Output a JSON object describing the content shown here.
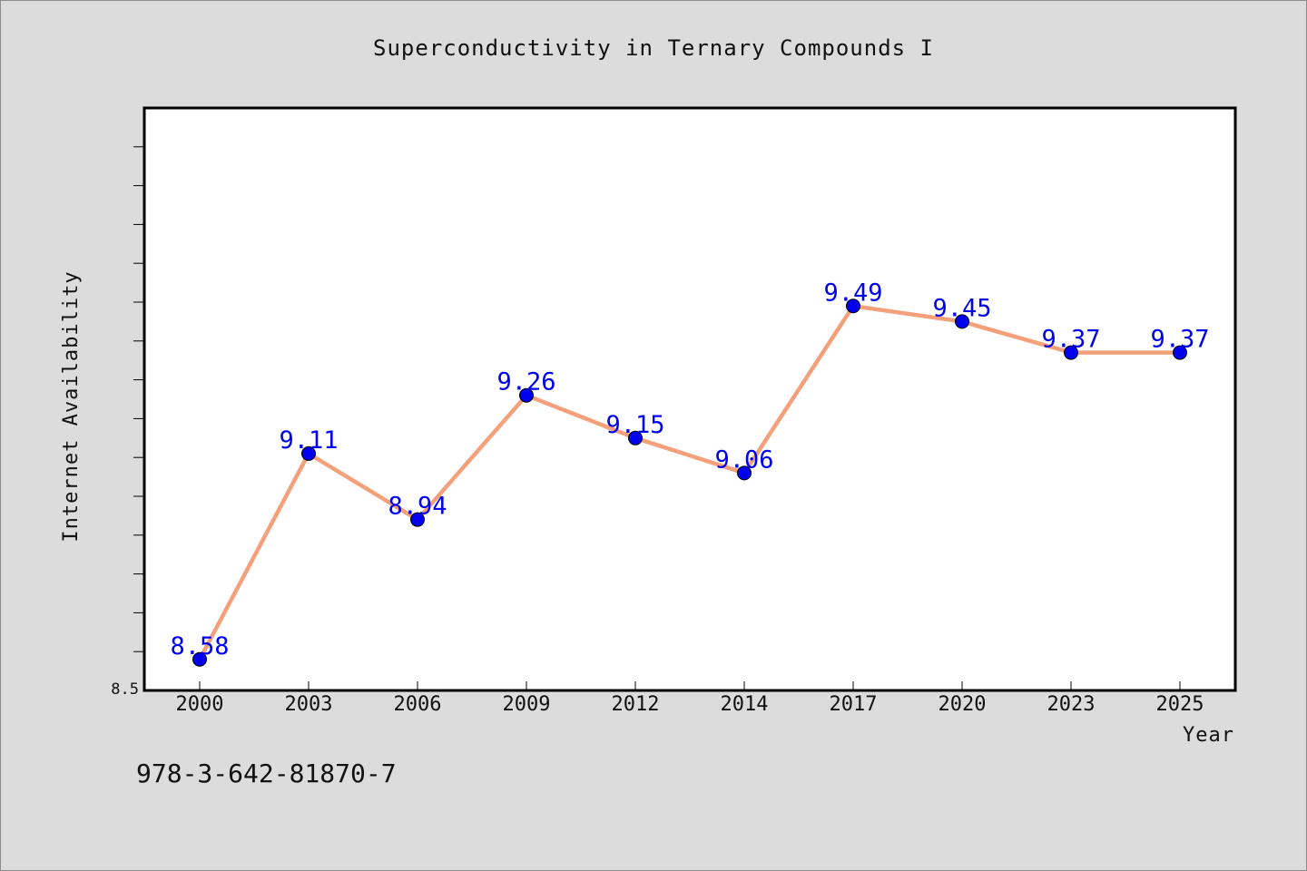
{
  "chart_data": {
    "type": "line",
    "title": "Superconductivity in Ternary Compounds I",
    "xlabel": "Year",
    "ylabel": "Internet Availability",
    "categories": [
      "2000",
      "2003",
      "2006",
      "2009",
      "2012",
      "2014",
      "2017",
      "2020",
      "2023",
      "2025"
    ],
    "series": [
      {
        "values": [
          8.58,
          9.11,
          8.94,
          9.26,
          9.15,
          9.06,
          9.49,
          9.45,
          9.37,
          9.37
        ],
        "line_color": "#f4a07a",
        "marker_color": "#0000ee"
      }
    ],
    "data_labels": [
      "8.58",
      "9.11",
      "8.94",
      "9.26",
      "9.15",
      "9.06",
      "9.49",
      "9.45",
      "9.37",
      "9.37"
    ],
    "yticks": [
      {
        "value": 8.5,
        "label": "8.5"
      }
    ],
    "ylim": [
      8.5,
      10.0
    ],
    "grid": false,
    "legend": "none"
  },
  "footer": {
    "isbn": "978-3-642-81870-7"
  }
}
